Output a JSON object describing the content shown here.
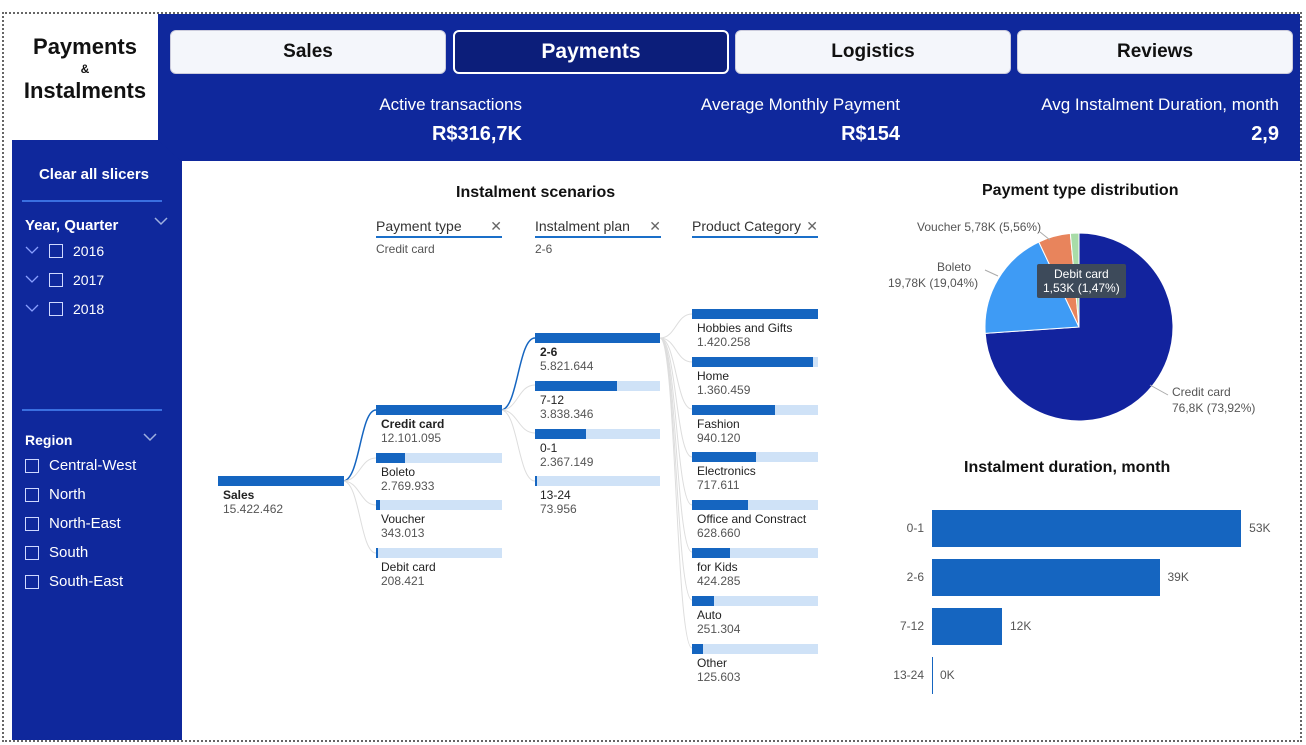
{
  "logo": {
    "line1": "Payments",
    "amp": "&",
    "line2": "Instalments"
  },
  "nav": [
    {
      "label": "Sales",
      "active": false
    },
    {
      "label": "Payments",
      "active": true
    },
    {
      "label": "Logistics",
      "active": false
    },
    {
      "label": "Reviews",
      "active": false
    }
  ],
  "kpis": [
    {
      "label": "Active transactions",
      "value": "R$316,7K"
    },
    {
      "label": "Average Monthly Payment",
      "value": "R$154"
    },
    {
      "label": "Avg Instalment Duration, month",
      "value": "2,9"
    }
  ],
  "sidebar": {
    "clear_label": "Clear all slicers",
    "year_title": "Year, Quarter",
    "years": [
      "2016",
      "2017",
      "2018"
    ],
    "region_title": "Region",
    "regions": [
      "Central-West",
      "North",
      "North-East",
      "South",
      "South-East"
    ]
  },
  "decomp": {
    "title": "Instalment scenarios",
    "headers": [
      {
        "label": "Payment type",
        "sub": "Credit card"
      },
      {
        "label": "Instalment plan",
        "sub": "2-6"
      },
      {
        "label": "Product Category",
        "sub": ""
      }
    ],
    "root": {
      "name": "Sales",
      "value": "15.422.462",
      "fill": 1.0
    },
    "payment_types": [
      {
        "name": "Credit card",
        "value": "12.101.095",
        "fill": 1.0,
        "selected": true
      },
      {
        "name": "Boleto",
        "value": "2.769.933",
        "fill": 0.229
      },
      {
        "name": "Voucher",
        "value": "343.013",
        "fill": 0.028
      },
      {
        "name": "Debit card",
        "value": "208.421",
        "fill": 0.017
      }
    ],
    "plans": [
      {
        "name": "2-6",
        "value": "5.821.644",
        "fill": 1.0,
        "selected": true
      },
      {
        "name": "7-12",
        "value": "3.838.346",
        "fill": 0.659
      },
      {
        "name": "0-1",
        "value": "2.367.149",
        "fill": 0.407
      },
      {
        "name": "13-24",
        "value": "73.956",
        "fill": 0.013
      }
    ],
    "categories": [
      {
        "name": "Hobbies and Gifts",
        "value": "1.420.258",
        "fill": 1.0
      },
      {
        "name": "Home",
        "value": "1.360.459",
        "fill": 0.958
      },
      {
        "name": "Fashion",
        "value": "940.120",
        "fill": 0.662
      },
      {
        "name": "Electronics",
        "value": "717.611",
        "fill": 0.505
      },
      {
        "name": "Office and Constract",
        "value": "628.660",
        "fill": 0.443
      },
      {
        "name": "for Kids",
        "value": "424.285",
        "fill": 0.299
      },
      {
        "name": "Auto",
        "value": "251.304",
        "fill": 0.177
      },
      {
        "name": "Other",
        "value": "125.603",
        "fill": 0.088
      }
    ]
  },
  "pie": {
    "title": "Payment type distribution",
    "tooltip_name": "Debit card",
    "tooltip_value": "1,53K (1,47%)",
    "label_voucher": "Voucher 5,78K (5,56%)",
    "label_boleto_name": "Boleto",
    "label_boleto_value": "19,78K (19,04%)",
    "label_credit_name": "Credit card",
    "label_credit_value": "76,8K (73,92%)",
    "colors": {
      "credit": "#12239e",
      "boleto": "#3e9bf5",
      "voucher": "#e8845c",
      "debit": "#a8dca8"
    }
  },
  "chart_data": {
    "type": "bar",
    "title": "Instalment duration, month",
    "categories": [
      "0-1",
      "2-6",
      "7-12",
      "13-24"
    ],
    "values": [
      53,
      39,
      12,
      0
    ],
    "value_labels": [
      "53K",
      "39K",
      "12K",
      "0K"
    ],
    "xlim": [
      0,
      60
    ]
  }
}
